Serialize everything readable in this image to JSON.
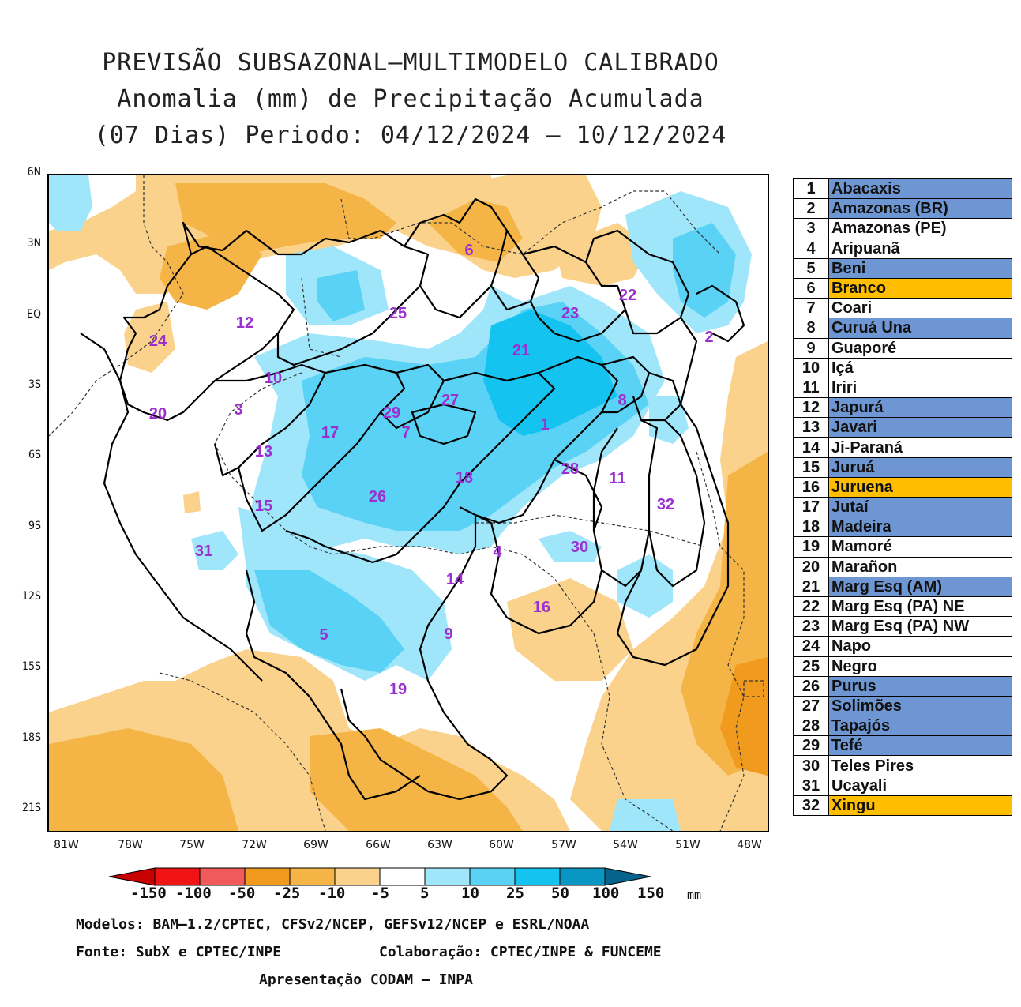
{
  "title": {
    "line1": "PREVISÃO SUBSAZONAL–MULTIMODELO CALIBRADO",
    "line2": "Anomalia (mm) de Precipitação Acumulada",
    "line3": "(07 Dias) Periodo: 04/12/2024 – 10/12/2024"
  },
  "axes": {
    "lat_ticks": [
      "6N",
      "3N",
      "EQ",
      "3S",
      "6S",
      "9S",
      "12S",
      "15S",
      "18S",
      "21S"
    ],
    "lon_ticks": [
      "81W",
      "78W",
      "75W",
      "72W",
      "69W",
      "66W",
      "63W",
      "60W",
      "57W",
      "54W",
      "51W",
      "48W"
    ]
  },
  "colorbar": {
    "labels": [
      "-150",
      "-100",
      "-50",
      "-25",
      "-10",
      "-5",
      "5",
      "10",
      "25",
      "50",
      "100",
      "150"
    ],
    "unit": "mm",
    "colors": [
      "#c80000",
      "#f01414",
      "#f05a5a",
      "#f09a1e",
      "#f5b446",
      "#fad28c",
      "#ffffff",
      "#a0e6fa",
      "#5ad2f5",
      "#14c3f0",
      "#0a96c3",
      "#06648c"
    ]
  },
  "basin_numbers": [
    "1",
    "2",
    "3",
    "4",
    "5",
    "6",
    "7",
    "8",
    "9",
    "10",
    "11",
    "12",
    "13",
    "14",
    "15",
    "16",
    "17",
    "18",
    "19",
    "20",
    "21",
    "22",
    "23",
    "24",
    "25",
    "26",
    "27",
    "28",
    "29",
    "30",
    "31",
    "32"
  ],
  "legend": [
    {
      "num": "1",
      "name": "Abacaxis",
      "color": "#6e96d2"
    },
    {
      "num": "2",
      "name": "Amazonas (BR)",
      "color": "#6e96d2"
    },
    {
      "num": "3",
      "name": "Amazonas (PE)",
      "color": "#ffffff"
    },
    {
      "num": "4",
      "name": "Aripuanã",
      "color": "#ffffff"
    },
    {
      "num": "5",
      "name": "Beni",
      "color": "#6e96d2"
    },
    {
      "num": "6",
      "name": "Branco",
      "color": "#ffbe00"
    },
    {
      "num": "7",
      "name": "Coari",
      "color": "#ffffff"
    },
    {
      "num": "8",
      "name": "Curuá Una",
      "color": "#6e96d2"
    },
    {
      "num": "9",
      "name": "Guaporé",
      "color": "#ffffff"
    },
    {
      "num": "10",
      "name": "Içá",
      "color": "#ffffff"
    },
    {
      "num": "11",
      "name": "Iriri",
      "color": "#ffffff"
    },
    {
      "num": "12",
      "name": "Japurá",
      "color": "#6e96d2"
    },
    {
      "num": "13",
      "name": "Javari",
      "color": "#6e96d2"
    },
    {
      "num": "14",
      "name": "Ji-Paraná",
      "color": "#ffffff"
    },
    {
      "num": "15",
      "name": "Juruá",
      "color": "#6e96d2"
    },
    {
      "num": "16",
      "name": "Juruena",
      "color": "#ffbe00"
    },
    {
      "num": "17",
      "name": "Jutaí",
      "color": "#6e96d2"
    },
    {
      "num": "18",
      "name": "Madeira",
      "color": "#6e96d2"
    },
    {
      "num": "19",
      "name": "Mamoré",
      "color": "#ffffff"
    },
    {
      "num": "20",
      "name": "Marañon",
      "color": "#ffffff"
    },
    {
      "num": "21",
      "name": "Marg Esq (AM)",
      "color": "#6e96d2"
    },
    {
      "num": "22",
      "name": "Marg Esq (PA) NE",
      "color": "#ffffff"
    },
    {
      "num": "23",
      "name": "Marg Esq (PA) NW",
      "color": "#ffffff"
    },
    {
      "num": "24",
      "name": "Napo",
      "color": "#ffffff"
    },
    {
      "num": "25",
      "name": "Negro",
      "color": "#ffffff"
    },
    {
      "num": "26",
      "name": "Purus",
      "color": "#6e96d2"
    },
    {
      "num": "27",
      "name": "Solimões",
      "color": "#6e96d2"
    },
    {
      "num": "28",
      "name": "Tapajós",
      "color": "#6e96d2"
    },
    {
      "num": "29",
      "name": "Tefé",
      "color": "#6e96d2"
    },
    {
      "num": "30",
      "name": "Teles Pires",
      "color": "#ffffff"
    },
    {
      "num": "31",
      "name": "Ucayali",
      "color": "#ffffff"
    },
    {
      "num": "32",
      "name": "Xingu",
      "color": "#ffbe00"
    }
  ],
  "footer": {
    "models": "Modelos: BAM–1.2/CPTEC, CFSv2/NCEP, GEFSv12/NCEP e ESRL/NOAA",
    "source": "Fonte: SubX e CPTEC/INPE",
    "collab": "Colaboração: CPTEC/INPE & FUNCEME",
    "presentation": "Apresentação CODAM – INPA"
  }
}
